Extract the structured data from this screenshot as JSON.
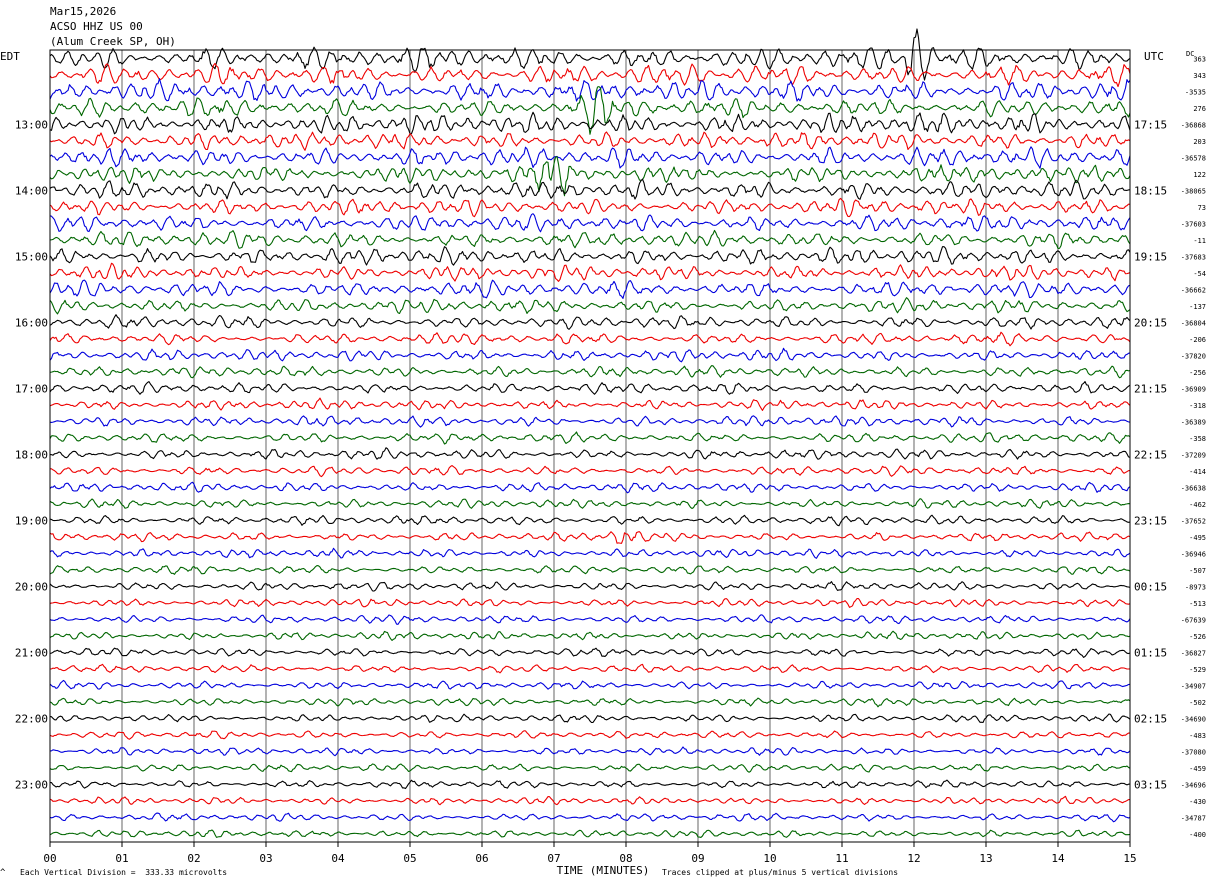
{
  "header": {
    "date": "Mar15,2026",
    "station": "ACSO HHZ US 00",
    "location": "(Alum Creek SP, OH)"
  },
  "axis": {
    "left_tz": "EDT",
    "right_tz": "UTC",
    "dc_label": "DC",
    "xlabel": "TIME (MINUTES)"
  },
  "footer": {
    "scale_note": "Each Vertical Division =  333.33 microvolts",
    "clip_note": "Traces clipped at plus/minus 5 vertical divisions",
    "corner_mark": "^"
  },
  "colors": {
    "cycle": [
      "#000000",
      "#ee0000",
      "#0000dd",
      "#006600"
    ],
    "grid": "#000000"
  },
  "chart_data": {
    "type": "line",
    "title": "",
    "x_ticks": [
      "00",
      "01",
      "02",
      "03",
      "04",
      "05",
      "06",
      "07",
      "08",
      "09",
      "10",
      "11",
      "12",
      "13",
      "14",
      "15"
    ],
    "xlim": [
      0,
      15
    ],
    "trace_count": 48,
    "left_hour_labels": [
      "13:00",
      "14:00",
      "15:00",
      "16:00",
      "17:00",
      "18:00",
      "19:00",
      "20:00",
      "21:00",
      "22:00",
      "23:00"
    ],
    "right_hour_labels": [
      "17:15",
      "18:15",
      "19:15",
      "20:15",
      "21:15",
      "22:15",
      "23:15",
      "00:15",
      "01:15",
      "02:15",
      "03:15"
    ],
    "dc_offsets": [
      "363",
      "343",
      "-3535",
      "276",
      "-36868",
      "203",
      "-36578",
      "122",
      "-38065",
      "73",
      "-37603",
      "-11",
      "-37683",
      "-54",
      "-36662",
      "-137",
      "-36804",
      "-206",
      "-37820",
      "-256",
      "-36909",
      "-318",
      "-36389",
      "-358",
      "-37209",
      "-414",
      "-36638",
      "-462",
      "-37652",
      "-495",
      "-36946",
      "-507",
      "-8973",
      "-513",
      "-67639",
      "-526",
      "-36827",
      "-529",
      "-34907",
      "-502",
      "-34690",
      "-483",
      "-37080",
      "-459",
      "-34696",
      "-430",
      "-34787",
      "-400"
    ],
    "amplitude_profile": [
      1.7,
      1.5,
      1.6,
      1.4,
      1.5,
      1.3,
      1.4,
      1.3,
      1.35,
      1.2,
      1.2,
      1.15,
      1.25,
      1.1,
      1.2,
      1.0,
      0.95,
      0.85,
      0.85,
      0.8,
      0.8,
      0.75,
      0.8,
      0.75,
      0.75,
      0.7,
      0.7,
      0.65,
      0.7,
      0.65,
      0.65,
      0.6,
      0.65,
      0.6,
      0.6,
      0.6,
      0.6,
      0.58,
      0.58,
      0.58,
      0.58,
      0.56,
      0.56,
      0.56,
      0.56,
      0.56,
      0.55,
      0.55
    ],
    "events": [
      {
        "trace": 0,
        "minute": 12.0,
        "amplitude": 2.4
      },
      {
        "trace": 3,
        "minute": 7.6,
        "amplitude": 2.2
      },
      {
        "trace": 7,
        "minute": 7.0,
        "amplitude": 2.3
      },
      {
        "trace": 29,
        "minute": 8.0,
        "amplitude": 2.0
      }
    ]
  }
}
